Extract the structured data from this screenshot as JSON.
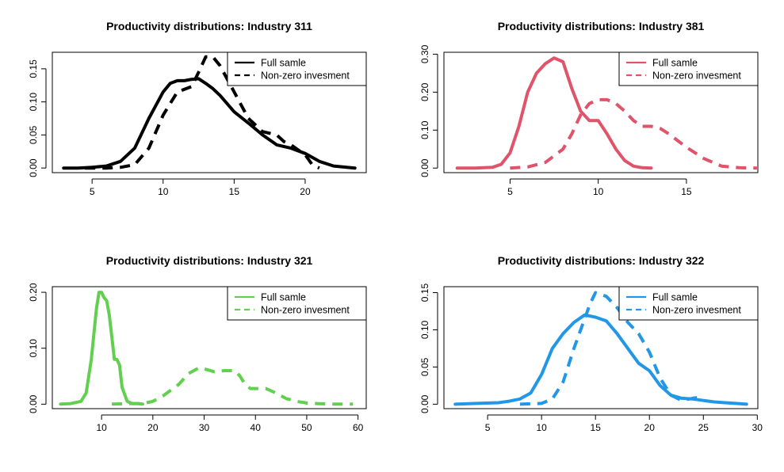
{
  "chart_data": [
    {
      "type": "line",
      "title": "Productivity distributions: Industry 311",
      "xlabel": "",
      "ylabel": "",
      "xlim": [
        2.2,
        24.3
      ],
      "ylim": [
        -0.007,
        0.175
      ],
      "x_ticks": [
        "5",
        "10",
        "15",
        "20"
      ],
      "y_ticks": [
        "0.00",
        "0.05",
        "0.10",
        "0.15"
      ],
      "legend_position": "top-right",
      "color": "#000000",
      "series": [
        {
          "name": "Full samle",
          "dash": "solid",
          "x": [
            3,
            4,
            5,
            6,
            7,
            8,
            9,
            10,
            10.5,
            11,
            11.5,
            12,
            12.5,
            13,
            13.5,
            14,
            15,
            16,
            17,
            18,
            19,
            20,
            21,
            22,
            23.5
          ],
          "y": [
            0,
            0,
            0.001,
            0.003,
            0.01,
            0.03,
            0.075,
            0.115,
            0.128,
            0.132,
            0.132,
            0.134,
            0.135,
            0.128,
            0.12,
            0.11,
            0.085,
            0.068,
            0.05,
            0.035,
            0.03,
            0.022,
            0.01,
            0.003,
            0
          ]
        },
        {
          "name": "Non-zero invesment",
          "dash": "dashed",
          "x": [
            4.5,
            6,
            7,
            8,
            9,
            10,
            11,
            12,
            12.5,
            13,
            13.5,
            14,
            15,
            16,
            17,
            18,
            18.5,
            19,
            20,
            20.5,
            21
          ],
          "y": [
            0,
            0,
            0.001,
            0.005,
            0.03,
            0.08,
            0.115,
            0.123,
            0.145,
            0.168,
            0.168,
            0.155,
            0.115,
            0.075,
            0.055,
            0.05,
            0.04,
            0.035,
            0.02,
            0.005,
            0
          ]
        }
      ]
    },
    {
      "type": "line",
      "title": "Productivity distributions: Industry 381",
      "xlabel": "",
      "ylabel": "",
      "xlim": [
        1.25,
        19.05
      ],
      "ylim": [
        -0.012,
        0.305
      ],
      "x_ticks": [
        "5",
        "10",
        "15"
      ],
      "y_ticks": [
        "0.00",
        "0.10",
        "0.20",
        "0.30"
      ],
      "legend_position": "top-right",
      "color": "#DF536B",
      "series": [
        {
          "name": "Full samle",
          "dash": "solid",
          "x": [
            2,
            3,
            4,
            4.5,
            5,
            5.5,
            6,
            6.5,
            7,
            7.5,
            8,
            8.5,
            9,
            9.5,
            10,
            10.5,
            11,
            11.5,
            12,
            12.5,
            13
          ],
          "y": [
            0,
            0,
            0.002,
            0.01,
            0.04,
            0.11,
            0.2,
            0.25,
            0.275,
            0.29,
            0.28,
            0.21,
            0.15,
            0.125,
            0.125,
            0.09,
            0.05,
            0.02,
            0.005,
            0.001,
            0
          ]
        },
        {
          "name": "Non-zero invesment",
          "dash": "dashed",
          "x": [
            5,
            6,
            7,
            8,
            8.5,
            9,
            9.5,
            10,
            10.5,
            11,
            11.5,
            12,
            12.5,
            13,
            13.5,
            14,
            15,
            16,
            17,
            18,
            19
          ],
          "y": [
            0,
            0.003,
            0.015,
            0.05,
            0.09,
            0.14,
            0.17,
            0.18,
            0.18,
            0.17,
            0.15,
            0.125,
            0.11,
            0.11,
            0.105,
            0.09,
            0.055,
            0.025,
            0.005,
            0.001,
            0
          ]
        }
      ]
    },
    {
      "type": "line",
      "title": "Productivity distributions: Industry 321",
      "xlabel": "",
      "ylabel": "",
      "xlim": [
        0.4,
        61.6
      ],
      "ylim": [
        -0.008,
        0.21
      ],
      "x_ticks": [
        "10",
        "20",
        "30",
        "40",
        "50",
        "60"
      ],
      "y_ticks": [
        "0.00",
        "0.10",
        "0.20"
      ],
      "legend_position": "top-right",
      "color": "#61D04F",
      "series": [
        {
          "name": "Full samle",
          "dash": "solid",
          "x": [
            2,
            4,
            6,
            7,
            8,
            9,
            9.5,
            10,
            10.5,
            11,
            11.5,
            12,
            12.5,
            13,
            13.5,
            14,
            15,
            16,
            17,
            18
          ],
          "y": [
            0,
            0.001,
            0.005,
            0.02,
            0.08,
            0.17,
            0.2,
            0.2,
            0.19,
            0.185,
            0.16,
            0.12,
            0.08,
            0.08,
            0.07,
            0.03,
            0.005,
            0.001,
            0.001,
            0
          ]
        },
        {
          "name": "Non-zero invesment",
          "dash": "dashed",
          "x": [
            12,
            15,
            18,
            20,
            22,
            25,
            27,
            29,
            30,
            32,
            34,
            36,
            37,
            38,
            39,
            40,
            42,
            44,
            46,
            48,
            50,
            52,
            55,
            59
          ],
          "y": [
            0,
            0.001,
            0.001,
            0.005,
            0.015,
            0.035,
            0.055,
            0.065,
            0.063,
            0.058,
            0.06,
            0.06,
            0.05,
            0.035,
            0.028,
            0.028,
            0.028,
            0.02,
            0.01,
            0.005,
            0.002,
            0.001,
            0,
            0
          ]
        }
      ]
    },
    {
      "type": "line",
      "title": "Productivity distributions: Industry 322",
      "xlabel": "",
      "ylabel": "",
      "xlim": [
        0.95,
        30.05
      ],
      "ylim": [
        -0.006,
        0.158
      ],
      "x_ticks": [
        "5",
        "10",
        "15",
        "20",
        "25",
        "30"
      ],
      "y_ticks": [
        "0.00",
        "0.05",
        "0.10",
        "0.15"
      ],
      "legend_position": "top-right",
      "color": "#2297E6",
      "series": [
        {
          "name": "Full samle",
          "dash": "solid",
          "x": [
            2,
            4,
            6,
            7,
            8,
            9,
            10,
            11,
            12,
            13,
            14,
            15,
            16,
            17,
            18,
            19,
            20,
            21,
            22,
            23,
            24,
            25,
            26,
            27,
            28,
            29
          ],
          "y": [
            0,
            0.001,
            0.002,
            0.004,
            0.007,
            0.015,
            0.04,
            0.075,
            0.095,
            0.11,
            0.12,
            0.117,
            0.112,
            0.095,
            0.075,
            0.055,
            0.045,
            0.025,
            0.012,
            0.008,
            0.007,
            0.005,
            0.003,
            0.002,
            0.001,
            0
          ]
        },
        {
          "name": "Non-zero invesment",
          "dash": "dashed",
          "x": [
            8,
            10,
            11,
            12,
            13,
            14,
            14.5,
            15,
            16,
            17,
            18,
            19,
            20,
            21,
            22,
            23,
            24,
            25
          ],
          "y": [
            0,
            0.001,
            0.007,
            0.03,
            0.075,
            0.115,
            0.135,
            0.15,
            0.145,
            0.13,
            0.11,
            0.095,
            0.07,
            0.035,
            0.012,
            0.005,
            0.008,
            0.01
          ]
        }
      ]
    }
  ]
}
